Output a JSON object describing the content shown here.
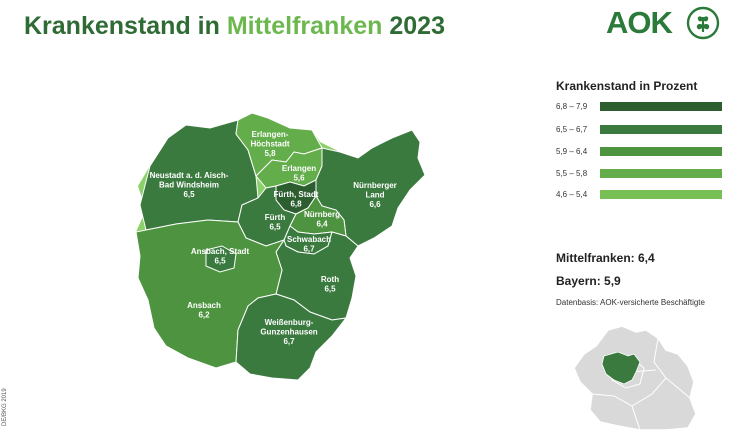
{
  "header": {
    "title_prefix": "Krankenstand in ",
    "title_highlight": "Mittelfranken",
    "title_suffix": " 2023"
  },
  "logo": {
    "text": "AOK"
  },
  "legend": {
    "title": "Krankenstand in Prozent",
    "items": [
      {
        "range": "6,8 – 7,9",
        "color": "#2d5e30"
      },
      {
        "range": "6,5 – 6,7",
        "color": "#3b7a3f"
      },
      {
        "range": "5,9 – 6,4",
        "color": "#4e9440"
      },
      {
        "range": "5,5 – 5,8",
        "color": "#63ad4b"
      },
      {
        "range": "4,6 – 5,4",
        "color": "#78c055"
      }
    ]
  },
  "stats": {
    "mittelfranken": "Mittelfranken: 6,4",
    "bayern": "Bayern: 5,9"
  },
  "source": "Datenbasis: AOK-versicherte Beschäftigte",
  "credit": "DE/BKG 2019",
  "regions": [
    {
      "name": "Erlangen-\nHöchstadt",
      "value": "5,8",
      "fill": "#63ad4b"
    },
    {
      "name": "Erlangen",
      "value": "5,6",
      "fill": "#63ad4b"
    },
    {
      "name": "Neustadt a. d. Aisch-\nBad Windsheim",
      "value": "6,5",
      "fill": "#3b7a3f"
    },
    {
      "name": "Nürnberger\nLand",
      "value": "6,6",
      "fill": "#3b7a3f"
    },
    {
      "name": "Fürth, Stadt",
      "value": "6,8",
      "fill": "#2d5e30"
    },
    {
      "name": "Fürth",
      "value": "6,5",
      "fill": "#3b7a3f"
    },
    {
      "name": "Nürnberg",
      "value": "6,4",
      "fill": "#4e9440"
    },
    {
      "name": "Schwabach",
      "value": "6,7",
      "fill": "#3b7a3f"
    },
    {
      "name": "Ansbach, Stadt",
      "value": "6,5",
      "fill": "#3b7a3f"
    },
    {
      "name": "Roth",
      "value": "6,5",
      "fill": "#3b7a3f"
    },
    {
      "name": "Ansbach",
      "value": "6,2",
      "fill": "#4e9440"
    },
    {
      "name": "Weißenburg-\nGunzenhausen",
      "value": "6,7",
      "fill": "#3b7a3f"
    }
  ]
}
